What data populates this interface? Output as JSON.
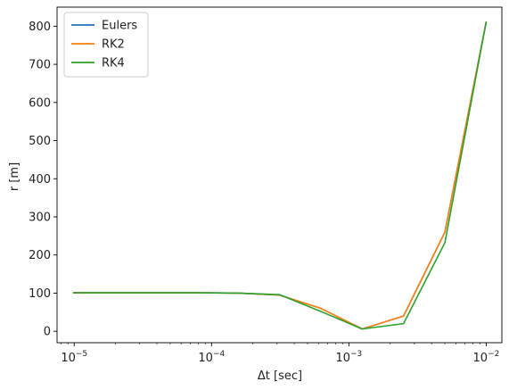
{
  "chart_data": {
    "type": "line",
    "xscale": "log",
    "xlabel": "Δt [sec]",
    "ylabel": "r [m]",
    "xlim": [
      7.5e-06,
      0.013
    ],
    "ylim": [
      -30,
      850
    ],
    "x_ticks": [
      {
        "value": 1e-05,
        "base": "10",
        "exp": "−5"
      },
      {
        "value": 0.0001,
        "base": "10",
        "exp": "−4"
      },
      {
        "value": 0.001,
        "base": "10",
        "exp": "−3"
      },
      {
        "value": 0.01,
        "base": "10",
        "exp": "−2"
      }
    ],
    "y_ticks": [
      0,
      100,
      200,
      300,
      400,
      500,
      600,
      700,
      800
    ],
    "x": [
      9.8e-06,
      1.95e-05,
      3.9e-05,
      7.8e-05,
      0.000156,
      0.0003125,
      0.000625,
      0.00125,
      0.0025,
      0.005,
      0.01
    ],
    "series": [
      {
        "name": "Eulers",
        "color": "#1f77b4",
        "values": [
          101,
          101,
          101,
          101,
          100,
          95,
          60,
          6,
          40,
          260,
          812
        ]
      },
      {
        "name": "RK2",
        "color": "#ff7f0e",
        "values": [
          101,
          101,
          101,
          101,
          100,
          95,
          60,
          6,
          40,
          260,
          812
        ]
      },
      {
        "name": "RK4",
        "color": "#2ca02c",
        "values": [
          101,
          101,
          101,
          101,
          100,
          96,
          52,
          6,
          20,
          232,
          812
        ]
      }
    ],
    "legend_position": "top-left",
    "grid": false
  }
}
